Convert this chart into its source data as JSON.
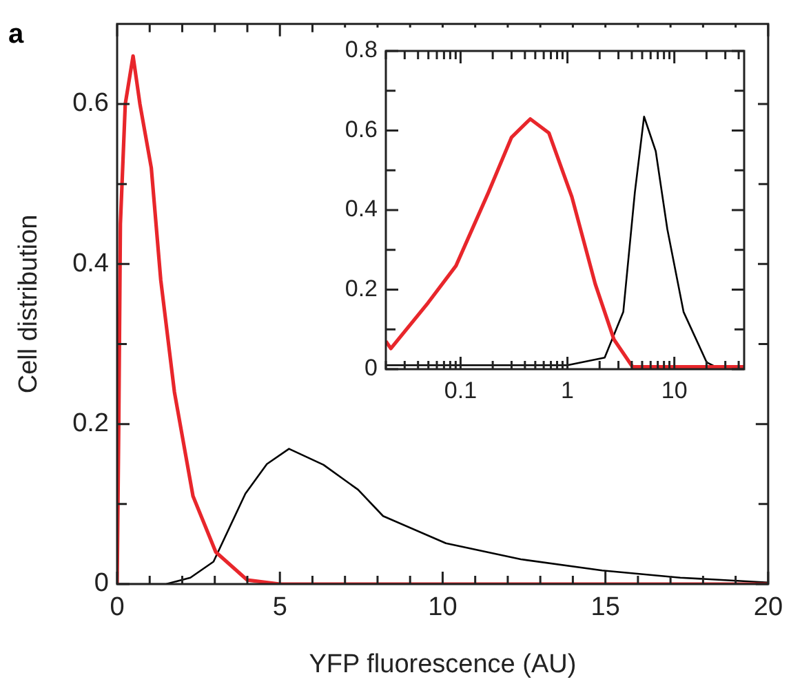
{
  "chart_data": [
    {
      "type": "line",
      "xlabel": "YFP fluorescence (AU)",
      "ylabel": "Cell distribution",
      "annotations": [
        "a"
      ],
      "marker": "none",
      "xlim": [
        0,
        20
      ],
      "xticks": [
        0,
        {
          "value": 1,
          "label": null
        },
        {
          "value": 2,
          "label": null
        },
        {
          "value": 3,
          "label": null
        },
        {
          "value": 4,
          "label": null
        },
        5,
        {
          "value": 6,
          "label": null
        },
        {
          "value": 7,
          "label": null
        },
        {
          "value": 8,
          "label": null
        },
        {
          "value": 9,
          "label": null
        },
        10,
        {
          "value": 11,
          "label": null
        },
        {
          "value": 12,
          "label": null
        },
        {
          "value": 13,
          "label": null
        },
        {
          "value": 14,
          "label": null
        },
        15,
        {
          "value": 16,
          "label": null
        },
        {
          "value": 17,
          "label": null
        },
        {
          "value": 18,
          "label": null
        },
        {
          "value": 19,
          "label": null
        },
        20
      ],
      "ylim": [
        0,
        0.7
      ],
      "yticks": [
        0,
        {
          "value": 0.1,
          "label": null
        },
        0.2,
        {
          "value": 0.3,
          "label": null
        },
        0.4,
        {
          "value": 0.5,
          "label": null
        },
        0.6
      ],
      "series": [
        {
          "color": "#e8262b",
          "x": [
            0,
            0.05,
            0.1,
            0.25,
            0.49,
            0.7,
            1.05,
            1.34,
            1.76,
            2.33,
            3.03,
            4.0,
            5,
            20
          ],
          "values": [
            0,
            0.2,
            0.45,
            0.6,
            0.66,
            0.6,
            0.52,
            0.38,
            0.24,
            0.11,
            0.04,
            0.005,
            0,
            0
          ]
        },
        {
          "color": "#000000",
          "x": [
            0,
            1.5,
            2.25,
            2.96,
            3.94,
            4.6,
            5.28,
            6.34,
            7.4,
            8.17,
            10.1,
            12.4,
            14.9,
            17.3,
            20
          ],
          "values": [
            0,
            0,
            0.008,
            0.028,
            0.113,
            0.15,
            0.169,
            0.149,
            0.118,
            0.085,
            0.051,
            0.031,
            0.017,
            0.008,
            0.002
          ]
        }
      ]
    },
    {
      "type": "line",
      "log": "x",
      "marker": "none",
      "xlim": [
        0.02,
        45
      ],
      "xticks": [
        {
          "value": 0.02,
          "label": null
        },
        {
          "value": 0.03,
          "label": null
        },
        {
          "value": 0.04,
          "label": null
        },
        {
          "value": 0.05,
          "label": null
        },
        {
          "value": 0.06,
          "label": null
        },
        {
          "value": 0.07,
          "label": null
        },
        {
          "value": 0.08,
          "label": null
        },
        {
          "value": 0.09,
          "label": null
        },
        0.1,
        {
          "value": 0.2,
          "label": null
        },
        {
          "value": 0.3,
          "label": null
        },
        {
          "value": 0.4,
          "label": null
        },
        {
          "value": 0.5,
          "label": null
        },
        {
          "value": 0.6,
          "label": null
        },
        {
          "value": 0.7,
          "label": null
        },
        {
          "value": 0.8,
          "label": null
        },
        {
          "value": 0.9,
          "label": null
        },
        1,
        {
          "value": 2,
          "label": null
        },
        {
          "value": 3,
          "label": null
        },
        {
          "value": 4,
          "label": null
        },
        {
          "value": 5,
          "label": null
        },
        {
          "value": 6,
          "label": null
        },
        {
          "value": 7,
          "label": null
        },
        {
          "value": 8,
          "label": null
        },
        {
          "value": 9,
          "label": null
        },
        10,
        {
          "value": 20,
          "label": null
        },
        {
          "value": 30,
          "label": null
        },
        {
          "value": 40,
          "label": null
        }
      ],
      "ylim": [
        0,
        0.8
      ],
      "yticks": [
        0,
        {
          "value": 0.1,
          "label": null
        },
        0.2,
        {
          "value": 0.3,
          "label": null
        },
        0.4,
        {
          "value": 0.5,
          "label": null
        },
        0.6,
        {
          "value": 0.7,
          "label": null
        },
        0.8
      ],
      "series": [
        {
          "color": "#e8262b",
          "x": [
            0.02,
            0.0223,
            0.0497,
            0.0906,
            0.182,
            0.3,
            0.449,
            0.67,
            1.1,
            1.82,
            2.72,
            4.06,
            45
          ],
          "values": [
            0.07,
            0.052,
            0.167,
            0.26,
            0.444,
            0.583,
            0.629,
            0.594,
            0.433,
            0.214,
            0.075,
            0.006,
            0.006
          ]
        },
        {
          "color": "#000000",
          "x": [
            0.02,
            0.1,
            1,
            2.23,
            3.33,
            4.27,
            5.21,
            6.7,
            8.6,
            12.2,
            20.1,
            26.9,
            45
          ],
          "values": [
            0.01,
            0.01,
            0.01,
            0.029,
            0.144,
            0.444,
            0.635,
            0.548,
            0.352,
            0.144,
            0.017,
            0,
            0
          ]
        }
      ]
    }
  ]
}
